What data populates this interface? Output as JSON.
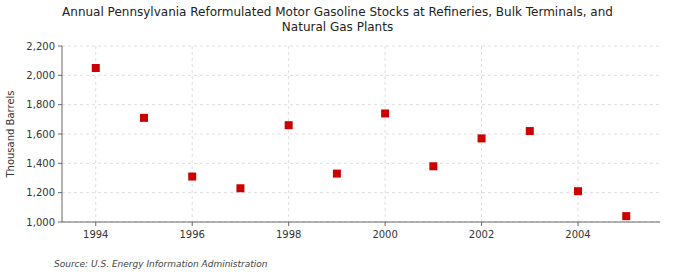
{
  "chart_data": {
    "type": "scatter",
    "title": "Annual Pennsylvania Reformulated Motor Gasoline Stocks at Refineries, Bulk Terminals, and\nNatural Gas Plants",
    "ylabel": "Thousand Barrels",
    "source": "Source: U.S. Energy Information Administration",
    "x": [
      1994,
      1995,
      1996,
      1997,
      1998,
      1999,
      2000,
      2001,
      2002,
      2003,
      2004,
      2005
    ],
    "values": [
      2050,
      1710,
      1310,
      1230,
      1660,
      1330,
      1740,
      1380,
      1570,
      1620,
      1210,
      1040
    ],
    "color": "#cc0000",
    "marker": "square",
    "xlim": [
      1993.3,
      2005.7
    ],
    "ylim": [
      1000,
      2200
    ],
    "xticks": [
      1994,
      1996,
      1998,
      2000,
      2002,
      2004
    ],
    "yticks": [
      {
        "value": 1000,
        "label": "1,000"
      },
      {
        "value": 1200,
        "label": "1,200"
      },
      {
        "value": 1400,
        "label": "1,400"
      },
      {
        "value": 1600,
        "label": "1,600"
      },
      {
        "value": 1800,
        "label": "1,800"
      },
      {
        "value": 2000,
        "label": "2,000"
      },
      {
        "value": 2200,
        "label": "2,200"
      }
    ],
    "grid": true
  }
}
